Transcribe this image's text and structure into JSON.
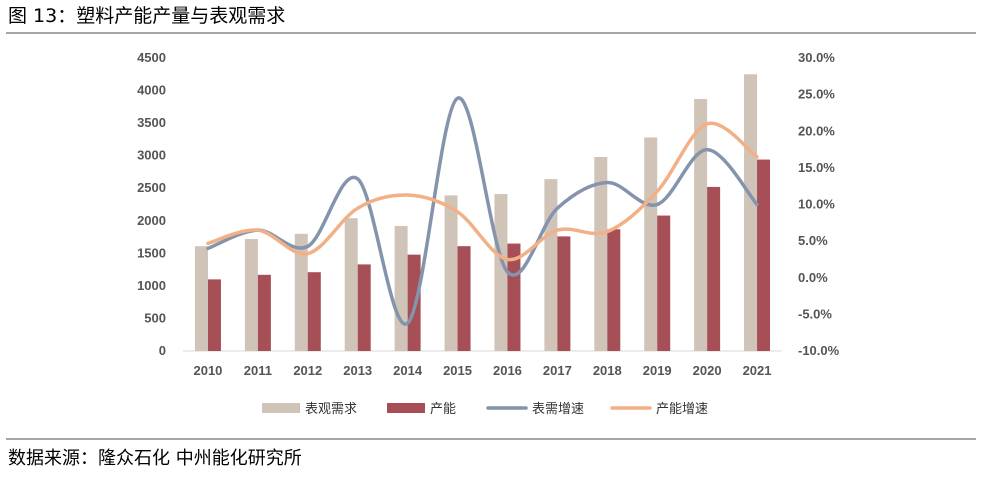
{
  "header": {
    "title": "图 13：塑料产能产量与表观需求"
  },
  "footer": {
    "source": "数据来源：隆众石化  中州能化研究所"
  },
  "chart_data": {
    "type": "bar+line",
    "categories": [
      "2010",
      "2011",
      "2012",
      "2013",
      "2014",
      "2015",
      "2016",
      "2017",
      "2018",
      "2019",
      "2020",
      "2021"
    ],
    "bar_series": [
      {
        "name": "表观需求",
        "color": "#d0c4b9",
        "axis": "left",
        "values": [
          1610,
          1720,
          1800,
          2040,
          1920,
          2390,
          2410,
          2640,
          2980,
          3280,
          3870,
          4250
        ]
      },
      {
        "name": "产能",
        "color": "#a64f56",
        "axis": "left",
        "values": [
          1100,
          1170,
          1210,
          1330,
          1480,
          1610,
          1650,
          1760,
          1870,
          2080,
          2520,
          2940
        ]
      }
    ],
    "line_series": [
      {
        "name": "表需增速",
        "color": "#8494ac",
        "axis": "right",
        "values": [
          4.0,
          6.5,
          4.3,
          13.5,
          -6.2,
          24.5,
          0.8,
          9.5,
          13.0,
          10.0,
          17.5,
          10.0
        ]
      },
      {
        "name": "产能增速",
        "color": "#f2b086",
        "axis": "right",
        "values": [
          4.7,
          6.5,
          3.3,
          9.5,
          11.3,
          9.0,
          2.5,
          6.5,
          6.3,
          11.8,
          21.0,
          16.5
        ]
      }
    ],
    "left_axis": {
      "min": 0,
      "max": 4500,
      "step": 500,
      "ticks": [
        "0",
        "500",
        "1000",
        "1500",
        "2000",
        "2500",
        "3000",
        "3500",
        "4000",
        "4500"
      ]
    },
    "right_axis": {
      "min": -10,
      "max": 30,
      "step": 5,
      "ticks": [
        "-10.0%",
        "-5.0%",
        "0.0%",
        "5.0%",
        "10.0%",
        "15.0%",
        "20.0%",
        "25.0%",
        "30.0%"
      ]
    },
    "legend": {
      "position": "bottom",
      "items": [
        {
          "label": "表观需求",
          "color": "#d0c4b9",
          "kind": "bar"
        },
        {
          "label": "产能",
          "color": "#a64f56",
          "kind": "bar"
        },
        {
          "label": "表需增速",
          "color": "#8494ac",
          "kind": "line"
        },
        {
          "label": "产能增速",
          "color": "#f2b086",
          "kind": "line"
        }
      ]
    },
    "grid": false
  }
}
